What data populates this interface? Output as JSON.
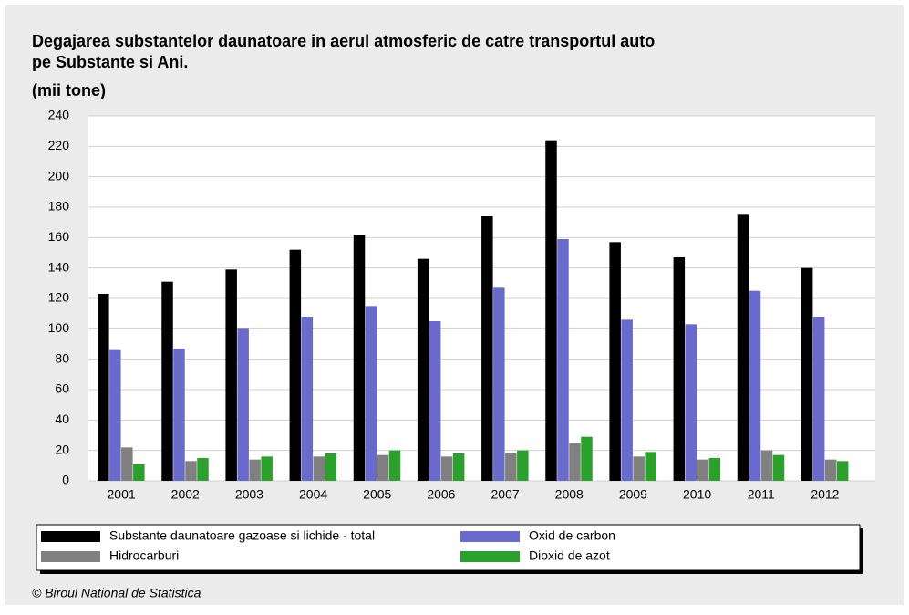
{
  "chart_data": {
    "type": "bar",
    "title": [
      "Degajarea substantelor daunatoare in aerul atmosferic de catre transportul auto",
      "pe Substante si Ani."
    ],
    "subtitle": "(mii tone)",
    "source": "© Biroul National de Statistica",
    "categories": [
      "2001",
      "2002",
      "2003",
      "2004",
      "2005",
      "2006",
      "2007",
      "2008",
      "2009",
      "2010",
      "2011",
      "2012"
    ],
    "series": [
      {
        "name": "Substante daunatoare gazoase si lichide - total",
        "color": "#000000",
        "values": [
          123,
          131,
          139,
          152,
          162,
          146,
          174,
          224,
          157,
          147,
          175,
          140
        ]
      },
      {
        "name": "Oxid de carbon",
        "color": "#6a6acd",
        "values": [
          86,
          87,
          100,
          108,
          115,
          105,
          127,
          159,
          106,
          103,
          125,
          108
        ]
      },
      {
        "name": "Hidrocarburi",
        "color": "#808080",
        "values": [
          22,
          13,
          14,
          16,
          17,
          16,
          18,
          25,
          16,
          14,
          20,
          14
        ]
      },
      {
        "name": "Dioxid de azot",
        "color": "#2ca02c",
        "values": [
          11,
          15,
          16,
          18,
          20,
          18,
          20,
          29,
          19,
          15,
          17,
          13
        ]
      }
    ],
    "ylim": [
      0,
      240
    ],
    "yticks": [
      0,
      20,
      40,
      60,
      80,
      100,
      120,
      140,
      160,
      180,
      200,
      220,
      240
    ],
    "grid": true,
    "legend": "bottom"
  }
}
